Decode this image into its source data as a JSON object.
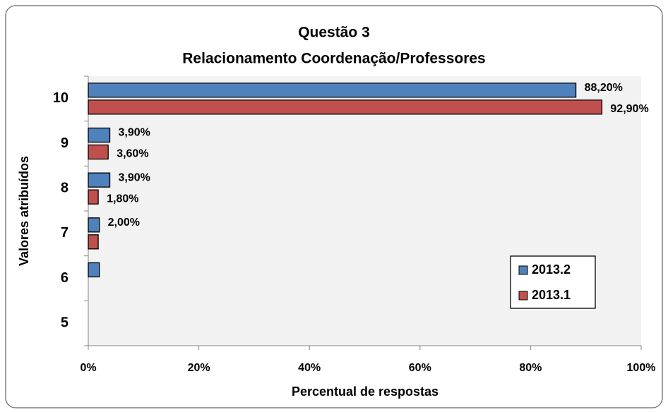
{
  "chart_data": {
    "type": "hbar",
    "title": [
      "Questão 3",
      "Relacionamento Coordenação/Professores"
    ],
    "xlabel": "Percentual de respostas",
    "ylabel": "Valores atribuídos",
    "categories": [
      "10",
      "9",
      "8",
      "7",
      "6",
      "5"
    ],
    "series": [
      {
        "name": "2013.2",
        "color": "#4f81bd",
        "values": [
          88.2,
          3.9,
          3.9,
          2.0,
          2.0,
          null
        ],
        "value_labels": [
          "88,20%",
          "3,90%",
          "3,90%",
          "2,00%",
          null,
          null
        ]
      },
      {
        "name": "2013.1",
        "color": "#c0504d",
        "values": [
          92.9,
          3.6,
          1.8,
          1.8,
          null,
          null
        ],
        "value_labels": [
          "92,90%",
          "3,60%",
          "1,80%",
          null,
          null,
          null
        ]
      }
    ],
    "xlim": [
      0,
      100
    ],
    "xticks": [
      {
        "value": 0,
        "label": "0%"
      },
      {
        "value": 20,
        "label": "20%"
      },
      {
        "value": 40,
        "label": "40%"
      },
      {
        "value": 60,
        "label": "60%"
      },
      {
        "value": 80,
        "label": "80%"
      },
      {
        "value": 100,
        "label": "100%"
      }
    ],
    "legend": "lower-right"
  }
}
